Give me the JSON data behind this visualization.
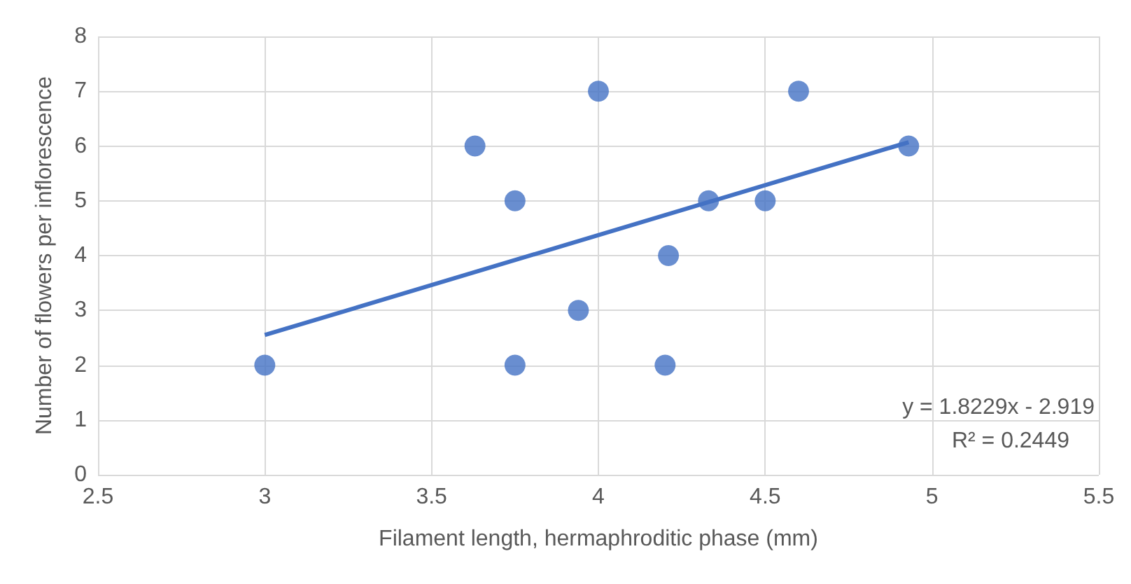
{
  "chart_data": {
    "type": "scatter",
    "xlabel": "Filament length, hermaphroditic phase (mm)",
    "ylabel": "Number of flowers per inflorescence",
    "xlim": [
      2.5,
      5.5
    ],
    "xticks": [
      2.5,
      3,
      3.5,
      4,
      4.5,
      5,
      5.5
    ],
    "ylim": [
      0,
      8
    ],
    "yticks": [
      0,
      1,
      2,
      3,
      4,
      5,
      6,
      7,
      8
    ],
    "grid": true,
    "series": [
      {
        "marker": "circle",
        "color": "#4472c4",
        "x": [
          3,
          3.63,
          3.75,
          3.75,
          3.94,
          4,
          4.21,
          4.2,
          4.33,
          4.5,
          4.6,
          4.93
        ],
        "values": [
          2,
          6,
          5,
          2,
          3,
          7,
          4,
          2,
          5,
          5,
          7,
          6
        ]
      },
      {
        "type": "line",
        "color": "#4472c4",
        "x": [
          3,
          4.93
        ],
        "values": [
          2.55,
          6.07
        ]
      }
    ],
    "annotations": [
      "y = 1.8229x - 2.919",
      "R² = 0.2449"
    ]
  }
}
